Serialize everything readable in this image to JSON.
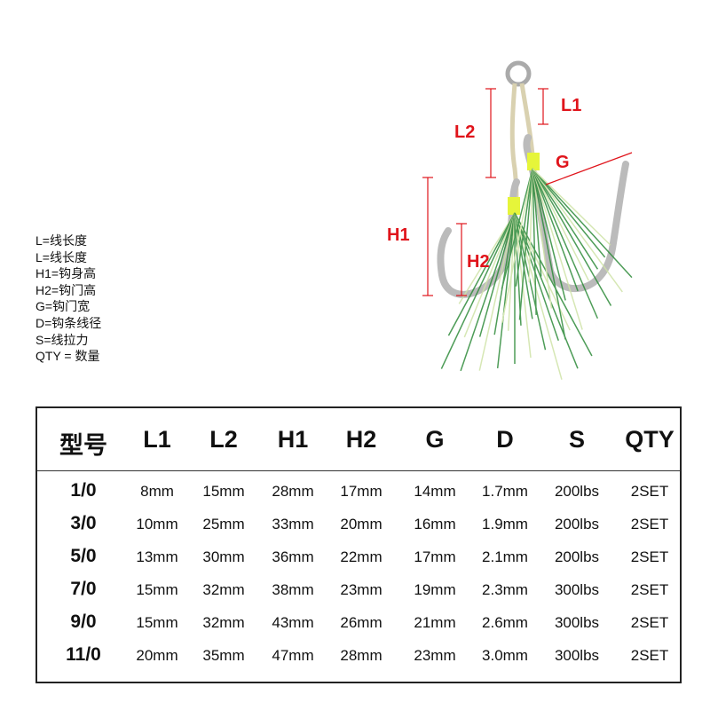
{
  "legend": [
    "L=线长度",
    "L=线长度",
    "H1=钩身高",
    "H2=钩门高",
    "G=钩门宽",
    "D=钩条线径",
    "S=线拉力",
    "QTY = 数量"
  ],
  "diagram_labels": {
    "l1": "L1",
    "l2": "L2",
    "g": "G",
    "h1": "H1",
    "h2": "H2",
    "color": "#e0141b"
  },
  "table": {
    "headers": [
      "型号",
      "L1",
      "L2",
      "H1",
      "H2",
      "G",
      "D",
      "S",
      "QTY"
    ],
    "rows": [
      [
        "1/0",
        "8mm",
        "15mm",
        "28mm",
        "17mm",
        "14mm",
        "1.7mm",
        "200lbs",
        "2SET"
      ],
      [
        "3/0",
        "10mm",
        "25mm",
        "33mm",
        "20mm",
        "16mm",
        "1.9mm",
        "200lbs",
        "2SET"
      ],
      [
        "5/0",
        "13mm",
        "30mm",
        "36mm",
        "22mm",
        "17mm",
        "2.1mm",
        "200lbs",
        "2SET"
      ],
      [
        "7/0",
        "15mm",
        "32mm",
        "38mm",
        "23mm",
        "19mm",
        "2.3mm",
        "300lbs",
        "2SET"
      ],
      [
        "9/0",
        "15mm",
        "32mm",
        "43mm",
        "26mm",
        "21mm",
        "2.6mm",
        "300lbs",
        "2SET"
      ],
      [
        "11/0",
        "20mm",
        "35mm",
        "47mm",
        "28mm",
        "23mm",
        "3.0mm",
        "300lbs",
        "2SET"
      ]
    ]
  }
}
